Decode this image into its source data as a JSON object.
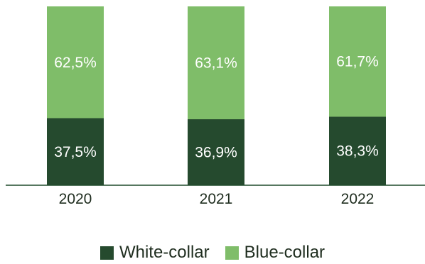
{
  "chart_data": {
    "type": "bar",
    "stacked": true,
    "categories": [
      "2020",
      "2021",
      "2022"
    ],
    "series": [
      {
        "name": "White-collar",
        "values": [
          37.5,
          36.9,
          38.3
        ],
        "labels": [
          "37,5%",
          "36,9%",
          "38,3%"
        ],
        "color": "#254a2e"
      },
      {
        "name": "Blue-collar",
        "values": [
          62.5,
          63.1,
          61.7
        ],
        "labels": [
          "62,5%",
          "63,1%",
          "61,7%"
        ],
        "color": "#7fbd69"
      }
    ],
    "ylim": [
      0,
      100
    ],
    "grid": false,
    "legend_placement": "bottom-center",
    "axis_line_color": "#1f4a2a"
  }
}
